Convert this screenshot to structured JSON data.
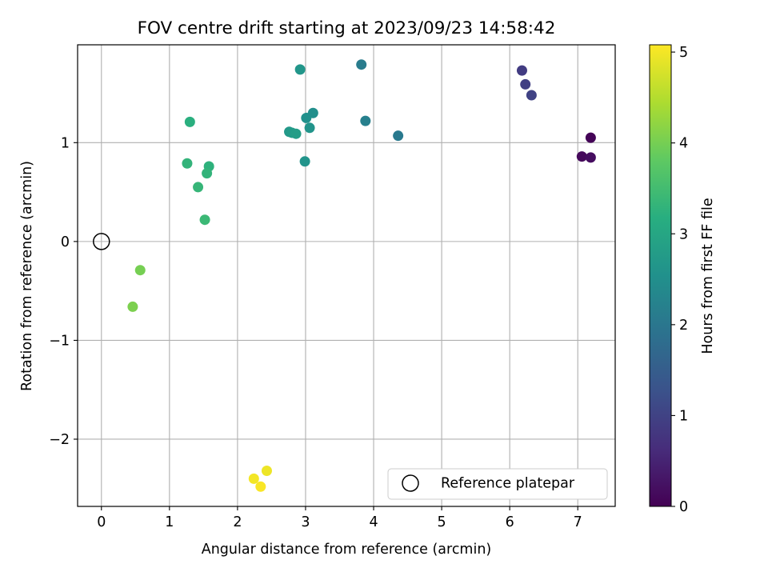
{
  "chart_data": {
    "type": "scatter",
    "title": "FOV centre drift starting at 2023/09/23 14:58:42",
    "xlabel": "Angular distance from reference (arcmin)",
    "ylabel": "Rotation from reference (arcmin)",
    "xlim": [
      -0.35,
      7.55
    ],
    "ylim": [
      -2.68,
      1.99
    ],
    "xticks": [
      0,
      1,
      2,
      3,
      4,
      5,
      6,
      7
    ],
    "xtick_labels": [
      "0",
      "1",
      "2",
      "3",
      "4",
      "5",
      "6",
      "7"
    ],
    "yticks": [
      -2,
      -1,
      0,
      1
    ],
    "ytick_labels": [
      "−2",
      "−1",
      "0",
      "1"
    ],
    "grid": true,
    "colormap": "viridis",
    "colorbar": {
      "label": "Hours from first FF file",
      "range": [
        0,
        5.08
      ],
      "ticks": [
        0,
        1,
        2,
        3,
        4,
        5
      ],
      "tick_labels": [
        "0",
        "1",
        "2",
        "3",
        "4",
        "5"
      ]
    },
    "reference_point": {
      "x": 0,
      "y": 0,
      "legend_label": "Reference platepar"
    },
    "legend_position": "lower-right",
    "points": [
      {
        "x": 7.19,
        "y": 1.05,
        "hours": 0.05
      },
      {
        "x": 7.06,
        "y": 0.86,
        "hours": 0.12
      },
      {
        "x": 7.19,
        "y": 0.85,
        "hours": 0.18
      },
      {
        "x": 6.18,
        "y": 1.73,
        "hours": 0.9
      },
      {
        "x": 6.23,
        "y": 1.59,
        "hours": 0.95
      },
      {
        "x": 6.32,
        "y": 1.48,
        "hours": 1.0
      },
      {
        "x": 3.82,
        "y": 1.79,
        "hours": 2.1
      },
      {
        "x": 3.88,
        "y": 1.22,
        "hours": 2.2
      },
      {
        "x": 4.36,
        "y": 1.07,
        "hours": 2.05
      },
      {
        "x": 2.92,
        "y": 1.74,
        "hours": 2.65
      },
      {
        "x": 3.01,
        "y": 1.25,
        "hours": 2.55
      },
      {
        "x": 3.11,
        "y": 1.3,
        "hours": 2.5
      },
      {
        "x": 3.06,
        "y": 1.15,
        "hours": 2.6
      },
      {
        "x": 2.76,
        "y": 1.11,
        "hours": 2.7
      },
      {
        "x": 2.8,
        "y": 1.1,
        "hours": 2.75
      },
      {
        "x": 2.86,
        "y": 1.09,
        "hours": 2.8
      },
      {
        "x": 2.99,
        "y": 0.81,
        "hours": 2.6
      },
      {
        "x": 1.3,
        "y": 1.21,
        "hours": 3.2
      },
      {
        "x": 1.26,
        "y": 0.79,
        "hours": 3.3
      },
      {
        "x": 1.58,
        "y": 0.76,
        "hours": 3.25
      },
      {
        "x": 1.55,
        "y": 0.69,
        "hours": 3.3
      },
      {
        "x": 1.42,
        "y": 0.55,
        "hours": 3.35
      },
      {
        "x": 1.52,
        "y": 0.22,
        "hours": 3.4
      },
      {
        "x": 0.57,
        "y": -0.29,
        "hours": 4.0
      },
      {
        "x": 0.46,
        "y": -0.66,
        "hours": 4.05
      },
      {
        "x": 2.43,
        "y": -2.32,
        "hours": 4.95
      },
      {
        "x": 2.24,
        "y": -2.4,
        "hours": 5.0
      },
      {
        "x": 2.34,
        "y": -2.48,
        "hours": 5.05
      }
    ]
  }
}
